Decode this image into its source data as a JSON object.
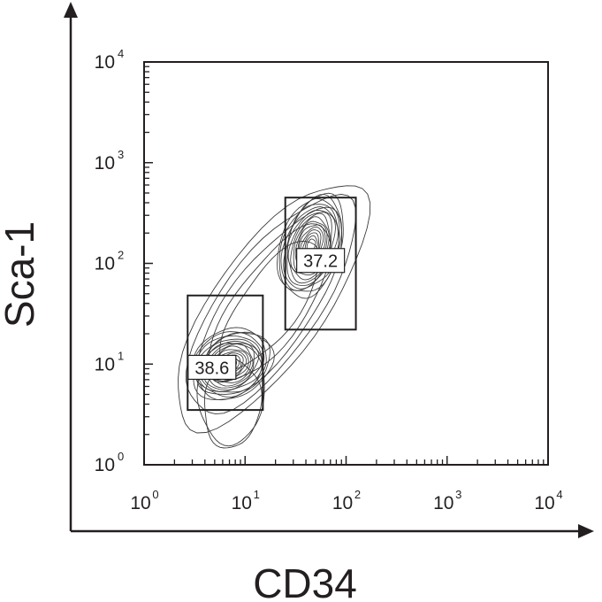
{
  "chart_data": {
    "type": "contour",
    "xlabel": "CD34",
    "ylabel": "Sca-1",
    "x_scale": "log",
    "y_scale": "log",
    "xlim": [
      1,
      10000
    ],
    "ylim": [
      1,
      10000
    ],
    "x_ticks": [
      {
        "base": "10",
        "exp": "0"
      },
      {
        "base": "10",
        "exp": "1"
      },
      {
        "base": "10",
        "exp": "2"
      },
      {
        "base": "10",
        "exp": "3"
      },
      {
        "base": "10",
        "exp": "4"
      }
    ],
    "y_ticks": [
      {
        "base": "10",
        "exp": "0"
      },
      {
        "base": "10",
        "exp": "1"
      },
      {
        "base": "10",
        "exp": "2"
      },
      {
        "base": "10",
        "exp": "3"
      },
      {
        "base": "10",
        "exp": "4"
      }
    ],
    "populations": [
      {
        "center_x": 7,
        "center_y": 10
      },
      {
        "center_x": 45,
        "center_y": 150
      }
    ],
    "gates": [
      {
        "label": "38.6",
        "x_range": [
          2.7,
          15
        ],
        "y_range": [
          3.5,
          48
        ]
      },
      {
        "label": "37.2",
        "x_range": [
          25,
          125
        ],
        "y_range": [
          22,
          450
        ]
      }
    ],
    "grid": false,
    "legend": "none",
    "line_color": "#3a3a3a",
    "axis_color": "#231f20"
  }
}
